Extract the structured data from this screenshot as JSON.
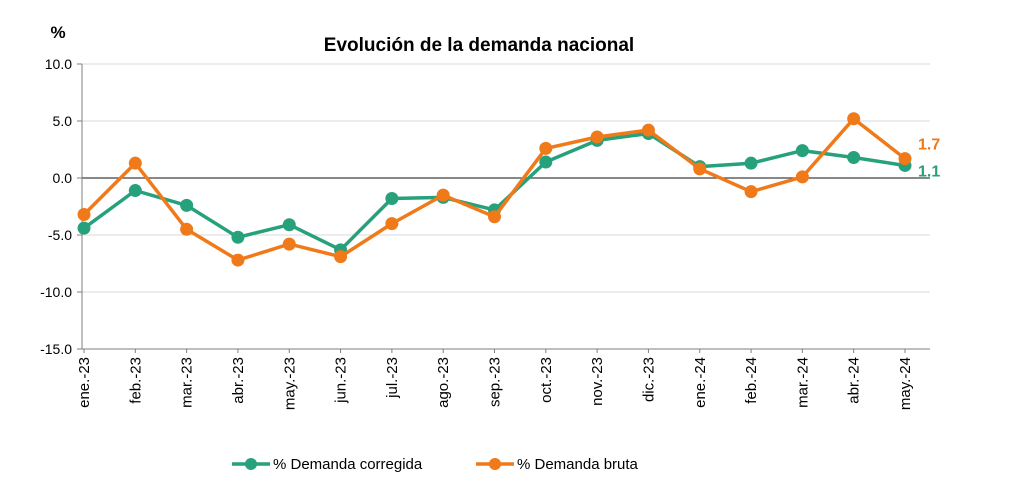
{
  "chart_data": {
    "type": "line",
    "title": "Evolución de la demanda nacional",
    "ylabel": "%",
    "xlabel": "",
    "ylim": [
      -15,
      10
    ],
    "yticks": [
      10,
      5,
      0,
      -5,
      -10,
      -15
    ],
    "ytick_labels": [
      "10.0",
      "5.0",
      "0.0",
      "-5.0",
      "-10.0",
      "-15.0"
    ],
    "grid": true,
    "legend_position": "bottom-center",
    "categories": [
      "ene.-23",
      "feb.-23",
      "mar.-23",
      "abr.-23",
      "may.-23",
      "jun.-23",
      "jul.-23",
      "ago.-23",
      "sep.-23",
      "oct.-23",
      "nov.-23",
      "dic.-23",
      "ene.-24",
      "feb.-24",
      "mar.-24",
      "abr.-24",
      "may.-24"
    ],
    "series": [
      {
        "name": "% Demanda corregida",
        "color": "#26A17B",
        "values": [
          -4.4,
          -1.1,
          -2.4,
          -5.2,
          -4.1,
          -6.3,
          -1.8,
          -1.7,
          -2.8,
          1.4,
          3.3,
          3.9,
          1.0,
          1.3,
          2.4,
          1.8,
          1.1
        ],
        "end_label": "1.1"
      },
      {
        "name": "% Demanda bruta",
        "color": "#F07A1A",
        "values": [
          -3.2,
          1.3,
          -4.5,
          -7.2,
          -5.8,
          -6.9,
          -4.0,
          -1.5,
          -3.4,
          2.6,
          3.6,
          4.2,
          0.8,
          -1.2,
          0.1,
          5.2,
          1.7
        ],
        "end_label": "1.7"
      }
    ]
  }
}
